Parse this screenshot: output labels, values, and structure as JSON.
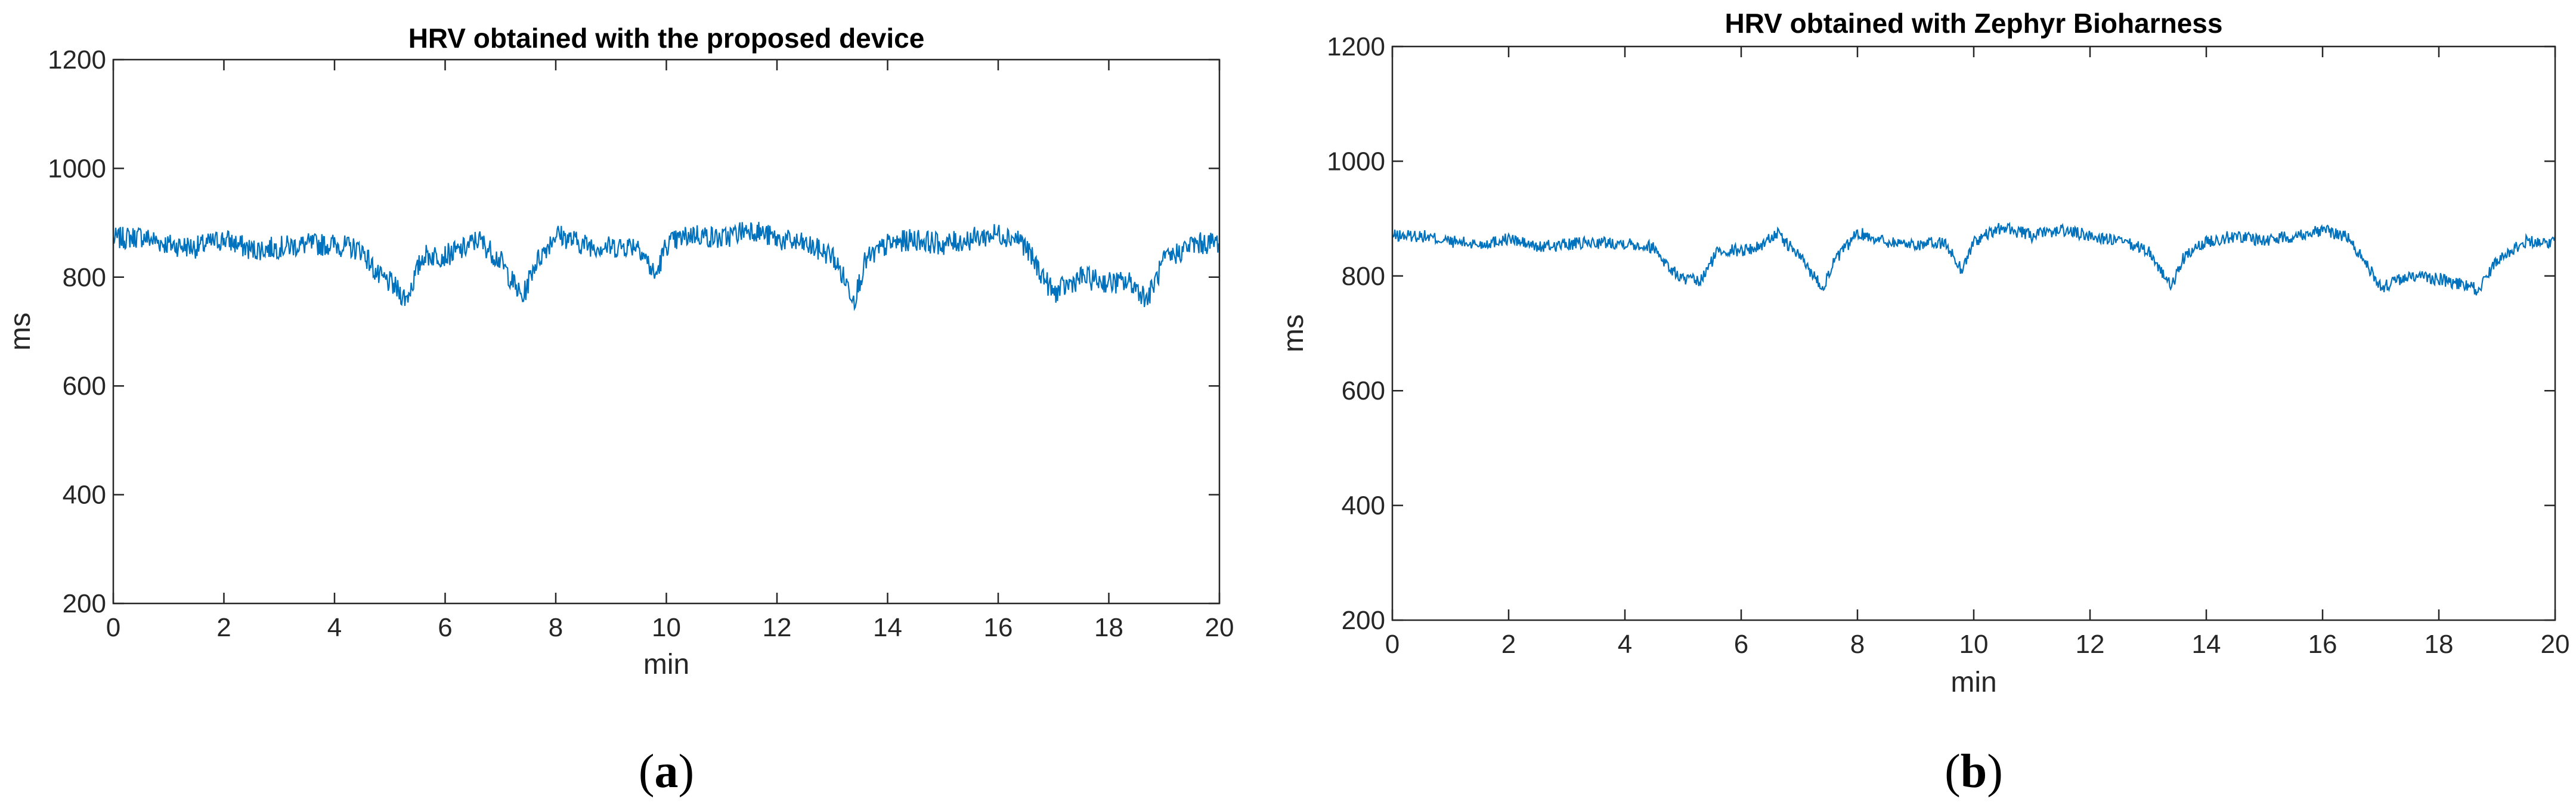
{
  "chart_data": [
    {
      "type": "line",
      "title": "HRV obtained with the proposed device",
      "xlabel": "min",
      "ylabel": "ms",
      "xlim": [
        0,
        20
      ],
      "ylim": [
        200,
        1200
      ],
      "xticks": [
        "0",
        "2",
        "4",
        "6",
        "8",
        "10",
        "12",
        "14",
        "16",
        "18",
        "20"
      ],
      "yticks": [
        "200",
        "400",
        "600",
        "800",
        "1000",
        "1200"
      ],
      "grid": false,
      "color": "#0072BD",
      "caption_letter": "a",
      "series": [
        {
          "x": [
            0,
            0.5,
            1,
            1.5,
            2,
            2.5,
            3,
            3.5,
            4,
            4.5,
            4.8,
            5,
            5.3,
            5.6,
            6,
            6.3,
            6.6,
            7,
            7.4,
            7.6,
            8,
            8.5,
            9,
            9.5,
            9.8,
            10,
            10.5,
            11,
            11.5,
            12,
            12.5,
            13,
            13.4,
            13.6,
            14,
            14.5,
            15,
            15.5,
            16,
            16.4,
            16.7,
            17,
            17.5,
            18,
            18.4,
            18.7,
            19,
            19.5,
            20
          ],
          "values": [
            870,
            875,
            860,
            855,
            870,
            850,
            855,
            860,
            860,
            850,
            800,
            790,
            760,
            840,
            840,
            850,
            870,
            830,
            760,
            820,
            880,
            860,
            855,
            860,
            800,
            860,
            880,
            870,
            890,
            870,
            860,
            840,
            760,
            830,
            860,
            870,
            860,
            870,
            880,
            870,
            820,
            770,
            800,
            790,
            790,
            760,
            830,
            860,
            865
          ]
        }
      ]
    },
    {
      "type": "line",
      "title": "HRV obtained with Zephyr Bioharness",
      "xlabel": "min",
      "ylabel": "ms",
      "xlim": [
        0,
        20
      ],
      "ylim": [
        200,
        1200
      ],
      "xticks": [
        "0",
        "2",
        "4",
        "6",
        "8",
        "10",
        "12",
        "14",
        "16",
        "18",
        "20"
      ],
      "yticks": [
        "200",
        "400",
        "600",
        "800",
        "1000",
        "1200"
      ],
      "grid": false,
      "color": "#0072BD",
      "caption_letter": "b",
      "series": [
        {
          "x": [
            0,
            0.5,
            1,
            1.5,
            2,
            2.5,
            3,
            3.5,
            4,
            4.5,
            4.8,
            5,
            5.3,
            5.6,
            6,
            6.3,
            6.6,
            7,
            7.4,
            7.6,
            8,
            8.5,
            9,
            9.5,
            9.8,
            10,
            10.5,
            11,
            11.5,
            12,
            12.5,
            13,
            13.4,
            13.6,
            14,
            14.5,
            15,
            15.5,
            16,
            16.4,
            16.7,
            17,
            17.5,
            18,
            18.4,
            18.7,
            19,
            19.5,
            20
          ],
          "values": [
            870,
            870,
            860,
            855,
            865,
            850,
            855,
            858,
            858,
            850,
            810,
            795,
            790,
            845,
            845,
            850,
            875,
            835,
            780,
            825,
            875,
            860,
            855,
            858,
            810,
            860,
            885,
            870,
            880,
            870,
            860,
            845,
            780,
            830,
            860,
            870,
            862,
            870,
            880,
            870,
            830,
            780,
            800,
            795,
            785,
            775,
            830,
            860,
            860
          ]
        }
      ]
    }
  ]
}
